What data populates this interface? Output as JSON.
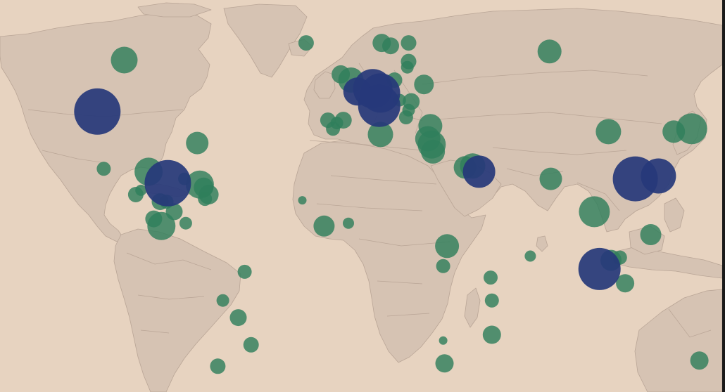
{
  "map": {
    "style": {
      "ocean_color": "#e7d3c0",
      "land_color": "#d6c3b3",
      "border_color": "#b9a596",
      "edge_color": "#1a1a1a"
    },
    "marker_categories": [
      {
        "key": "small",
        "color": "#2f7f5c",
        "opacity": 0.82
      },
      {
        "key": "large",
        "color": "#26387a",
        "opacity": 0.92
      }
    ],
    "markers": [
      {
        "id": "canada-east",
        "lon": -101.5,
        "lat": 59.0,
        "r": 19,
        "cat": "small"
      },
      {
        "id": "usa-west",
        "lon": -112.0,
        "lat": 41.0,
        "r": 33,
        "cat": "large"
      },
      {
        "id": "usa-southeast",
        "lon": -73.0,
        "lat": 30.0,
        "r": 16,
        "cat": "small"
      },
      {
        "id": "mexico-west",
        "lon": -109.5,
        "lat": 21.0,
        "r": 10,
        "cat": "small"
      },
      {
        "id": "mexico-south",
        "lon": -92.0,
        "lat": 20.0,
        "r": 20,
        "cat": "small"
      },
      {
        "id": "mexico-east",
        "lon": -84.5,
        "lat": 16.0,
        "r": 33,
        "cat": "large"
      },
      {
        "id": "caribbean-1",
        "lon": -78.0,
        "lat": 17.5,
        "r": 9,
        "cat": "small"
      },
      {
        "id": "caribbean-2",
        "lon": -72.0,
        "lat": 15.5,
        "r": 20,
        "cat": "small"
      },
      {
        "id": "caribbean-3",
        "lon": -70.5,
        "lat": 14.5,
        "r": 14,
        "cat": "small"
      },
      {
        "id": "caribbean-4",
        "lon": -68.5,
        "lat": 12.0,
        "r": 14,
        "cat": "small"
      },
      {
        "id": "caribbean-5",
        "lon": -70.0,
        "lat": 10.5,
        "r": 10,
        "cat": "small"
      },
      {
        "id": "central-america-1",
        "lon": -97.0,
        "lat": 12.0,
        "r": 11,
        "cat": "small"
      },
      {
        "id": "central-america-2",
        "lon": -95.0,
        "lat": 13.5,
        "r": 8,
        "cat": "small"
      },
      {
        "id": "central-america-3",
        "lon": -87.5,
        "lat": 9.5,
        "r": 12,
        "cat": "small"
      },
      {
        "id": "central-america-4",
        "lon": -85.0,
        "lat": 9.5,
        "r": 10,
        "cat": "small"
      },
      {
        "id": "central-america-5",
        "lon": -82.0,
        "lat": 6.0,
        "r": 12,
        "cat": "small"
      },
      {
        "id": "panama",
        "lon": -90.0,
        "lat": 3.5,
        "r": 12,
        "cat": "small"
      },
      {
        "id": "colombia",
        "lon": -87.0,
        "lat": 1.0,
        "r": 20,
        "cat": "small"
      },
      {
        "id": "venezuela",
        "lon": -77.5,
        "lat": 2.0,
        "r": 9,
        "cat": "small"
      },
      {
        "id": "brazil-west",
        "lon": -54.5,
        "lat": -15.0,
        "r": 10,
        "cat": "small"
      },
      {
        "id": "bolivia",
        "lon": -63.0,
        "lat": -25.0,
        "r": 9,
        "cat": "small"
      },
      {
        "id": "paraguay",
        "lon": -57.0,
        "lat": -31.0,
        "r": 12,
        "cat": "small"
      },
      {
        "id": "uruguay",
        "lon": -52.0,
        "lat": -40.5,
        "r": 11,
        "cat": "small"
      },
      {
        "id": "argentina-south",
        "lon": -65.0,
        "lat": -48.0,
        "r": 11,
        "cat": "small"
      },
      {
        "id": "iceland",
        "lon": -30.5,
        "lat": 65.0,
        "r": 11,
        "cat": "small"
      },
      {
        "id": "ireland",
        "lon": -17.0,
        "lat": 54.0,
        "r": 13,
        "cat": "small"
      },
      {
        "id": "uk",
        "lon": -13.0,
        "lat": 52.0,
        "r": 18,
        "cat": "small"
      },
      {
        "id": "france-west",
        "lon": -10.5,
        "lat": 48.0,
        "r": 20,
        "cat": "large"
      },
      {
        "id": "germany",
        "lon": -4.5,
        "lat": 49.0,
        "r": 28,
        "cat": "large"
      },
      {
        "id": "central-europe",
        "lon": -1.5,
        "lat": 47.5,
        "r": 28,
        "cat": "large"
      },
      {
        "id": "europe-south",
        "lon": -2.0,
        "lat": 43.0,
        "r": 30,
        "cat": "large"
      },
      {
        "id": "norway",
        "lon": -1.0,
        "lat": 65.0,
        "r": 13,
        "cat": "small"
      },
      {
        "id": "sweden",
        "lon": 2.5,
        "lat": 64.0,
        "r": 12,
        "cat": "small"
      },
      {
        "id": "finland",
        "lon": 9.5,
        "lat": 65.0,
        "r": 11,
        "cat": "small"
      },
      {
        "id": "baltic-1",
        "lon": 9.5,
        "lat": 58.5,
        "r": 11,
        "cat": "small"
      },
      {
        "id": "baltic-2",
        "lon": 9.0,
        "lat": 56.5,
        "r": 9,
        "cat": "small"
      },
      {
        "id": "poland",
        "lon": 4.0,
        "lat": 52.0,
        "r": 11,
        "cat": "small"
      },
      {
        "id": "ukraine",
        "lon": 15.5,
        "lat": 50.5,
        "r": 14,
        "cat": "small"
      },
      {
        "id": "balkans-1",
        "lon": 6.0,
        "lat": 45.0,
        "r": 9,
        "cat": "small"
      },
      {
        "id": "balkans-2",
        "lon": 10.5,
        "lat": 44.5,
        "r": 12,
        "cat": "small"
      },
      {
        "id": "balkans-3",
        "lon": 9.5,
        "lat": 41.5,
        "r": 9,
        "cat": "small"
      },
      {
        "id": "greece",
        "lon": 8.5,
        "lat": 39.0,
        "r": 10,
        "cat": "small"
      },
      {
        "id": "portugal",
        "lon": -22.0,
        "lat": 38.0,
        "r": 11,
        "cat": "small"
      },
      {
        "id": "spain-west",
        "lon": -18.5,
        "lat": 37.0,
        "r": 9,
        "cat": "small"
      },
      {
        "id": "spain",
        "lon": -16.0,
        "lat": 38.0,
        "r": 12,
        "cat": "small"
      },
      {
        "id": "spain-south",
        "lon": -20.0,
        "lat": 35.0,
        "r": 10,
        "cat": "small"
      },
      {
        "id": "italy",
        "lon": -1.5,
        "lat": 33.0,
        "r": 18,
        "cat": "small"
      },
      {
        "id": "turkey",
        "lon": 18.0,
        "lat": 36.0,
        "r": 17,
        "cat": "small"
      },
      {
        "id": "israel-1",
        "lon": 17.0,
        "lat": 31.5,
        "r": 18,
        "cat": "small"
      },
      {
        "id": "israel-2",
        "lon": 18.5,
        "lat": 29.5,
        "r": 20,
        "cat": "small"
      },
      {
        "id": "jordan",
        "lon": 19.0,
        "lat": 27.0,
        "r": 17,
        "cat": "small"
      },
      {
        "id": "gulf-1",
        "lon": 31.5,
        "lat": 21.5,
        "r": 16,
        "cat": "small"
      },
      {
        "id": "gulf-2",
        "lon": 34.5,
        "lat": 22.0,
        "r": 18,
        "cat": "small"
      },
      {
        "id": "uae",
        "lon": 37.0,
        "lat": 20.0,
        "r": 23,
        "cat": "large"
      },
      {
        "id": "guinea",
        "lon": -32.0,
        "lat": 10.0,
        "r": 6,
        "cat": "small"
      },
      {
        "id": "ivory-coast",
        "lon": -23.5,
        "lat": 1.0,
        "r": 15,
        "cat": "small"
      },
      {
        "id": "ghana",
        "lon": -14.0,
        "lat": 2.0,
        "r": 8,
        "cat": "small"
      },
      {
        "id": "kenya",
        "lon": 24.5,
        "lat": -6.0,
        "r": 17,
        "cat": "small"
      },
      {
        "id": "tanzania",
        "lon": 23.0,
        "lat": -13.0,
        "r": 10,
        "cat": "small"
      },
      {
        "id": "madagascar",
        "lon": 41.5,
        "lat": -17.0,
        "r": 10,
        "cat": "small"
      },
      {
        "id": "mauritius",
        "lon": 42.0,
        "lat": -37.0,
        "r": 13,
        "cat": "small"
      },
      {
        "id": "zimbabwe",
        "lon": 23.0,
        "lat": -39.0,
        "r": 6,
        "cat": "small"
      },
      {
        "id": "south-africa",
        "lon": 23.5,
        "lat": -47.0,
        "r": 13,
        "cat": "small"
      },
      {
        "id": "russia",
        "lon": 64.5,
        "lat": 62.0,
        "r": 17,
        "cat": "small"
      },
      {
        "id": "china-west",
        "lon": 87.5,
        "lat": 34.0,
        "r": 18,
        "cat": "small"
      },
      {
        "id": "japan-west",
        "lon": 113.0,
        "lat": 34.0,
        "r": 16,
        "cat": "small"
      },
      {
        "id": "japan",
        "lon": 120.0,
        "lat": 35.0,
        "r": 22,
        "cat": "small"
      },
      {
        "id": "india",
        "lon": 65.0,
        "lat": 17.5,
        "r": 16,
        "cat": "small"
      },
      {
        "id": "china-south",
        "lon": 98.0,
        "lat": 17.5,
        "r": 32,
        "cat": "large"
      },
      {
        "id": "taiwan",
        "lon": 107.0,
        "lat": 18.5,
        "r": 25,
        "cat": "large"
      },
      {
        "id": "thailand",
        "lon": 82.0,
        "lat": 6.0,
        "r": 22,
        "cat": "small"
      },
      {
        "id": "philippines",
        "lon": 104.0,
        "lat": -2.0,
        "r": 15,
        "cat": "small"
      },
      {
        "id": "sri-lanka",
        "lon": 57.0,
        "lat": -9.5,
        "r": 8,
        "cat": "small"
      },
      {
        "id": "singapore",
        "lon": 84.0,
        "lat": -14.0,
        "r": 30,
        "cat": "large"
      },
      {
        "id": "malaysia",
        "lon": 88.5,
        "lat": -11.0,
        "r": 15,
        "cat": "small"
      },
      {
        "id": "brunei",
        "lon": 92.0,
        "lat": -10.0,
        "r": 10,
        "cat": "small"
      },
      {
        "id": "indonesia",
        "lon": 94.0,
        "lat": -19.0,
        "r": 13,
        "cat": "small"
      },
      {
        "id": "maldives",
        "lon": 42.0,
        "lat": -25.0,
        "r": 10,
        "cat": "small"
      },
      {
        "id": "australia",
        "lon": 123.0,
        "lat": -46.0,
        "r": 13,
        "cat": "small"
      }
    ]
  }
}
